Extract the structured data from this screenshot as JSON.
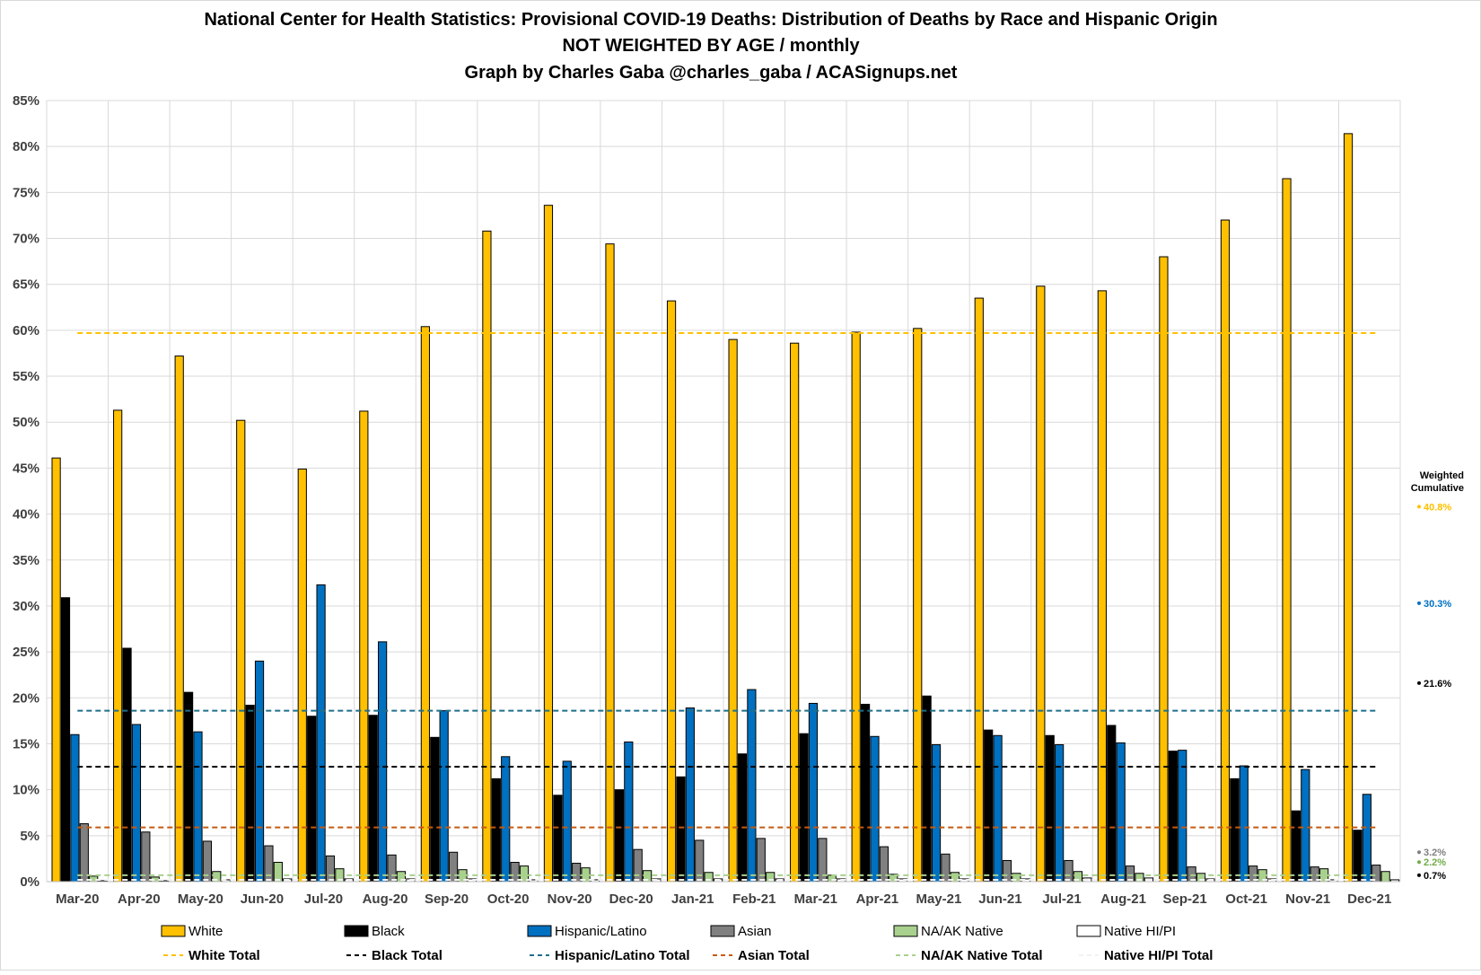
{
  "chart_data": {
    "type": "bar",
    "title_lines": [
      "National Center for Health Statistics: Provisional COVID-19 Deaths: Distribution of Deaths by Race and Hispanic Origin",
      "NOT WEIGHTED BY AGE / monthly",
      "Graph by Charles Gaba @charles_gaba / ACASignups.net"
    ],
    "categories": [
      "Mar-20",
      "Apr-20",
      "May-20",
      "Jun-20",
      "Jul-20",
      "Aug-20",
      "Sep-20",
      "Oct-20",
      "Nov-20",
      "Dec-20",
      "Jan-21",
      "Feb-21",
      "Mar-21",
      "Apr-21",
      "May-21",
      "Jun-21",
      "Jul-21",
      "Aug-21",
      "Sep-21",
      "Oct-21",
      "Nov-21",
      "Dec-21"
    ],
    "ylim": [
      0,
      85
    ],
    "yticks": [
      0,
      5,
      10,
      15,
      20,
      25,
      30,
      35,
      40,
      45,
      50,
      55,
      60,
      65,
      70,
      75,
      80,
      85
    ],
    "y_unit": "%",
    "grid": true,
    "series": [
      {
        "name": "White",
        "color": "#FFC000",
        "values": [
          46.1,
          51.3,
          57.2,
          50.2,
          44.9,
          51.2,
          60.4,
          70.8,
          73.6,
          69.4,
          63.2,
          59.0,
          58.6,
          59.8,
          60.2,
          63.5,
          64.8,
          64.3,
          68.0,
          72.0,
          76.5,
          81.4
        ]
      },
      {
        "name": "Black",
        "color": "#000000",
        "values": [
          30.9,
          25.4,
          20.6,
          19.2,
          18.0,
          18.1,
          15.7,
          11.2,
          9.4,
          10.0,
          11.4,
          13.9,
          16.1,
          19.3,
          20.2,
          16.5,
          15.9,
          17.0,
          14.2,
          11.2,
          7.7,
          5.6
        ]
      },
      {
        "name": "Hispanic/Latino",
        "color": "#0070C0",
        "values": [
          16.0,
          17.1,
          16.3,
          24.0,
          32.3,
          26.1,
          18.6,
          13.6,
          13.1,
          15.2,
          18.9,
          20.9,
          19.4,
          15.8,
          14.9,
          15.9,
          14.9,
          15.1,
          14.3,
          12.6,
          12.2,
          9.5
        ]
      },
      {
        "name": "Asian",
        "color": "#808080",
        "values": [
          6.3,
          5.4,
          4.4,
          3.9,
          2.8,
          2.9,
          3.2,
          2.1,
          2.0,
          3.5,
          4.5,
          4.7,
          4.7,
          3.8,
          3.0,
          2.3,
          2.3,
          1.7,
          1.6,
          1.7,
          1.6,
          1.8
        ]
      },
      {
        "name": "NA/AK Native",
        "color": "#A9D18E",
        "values": [
          0.6,
          0.5,
          1.1,
          2.1,
          1.4,
          1.1,
          1.3,
          1.7,
          1.5,
          1.2,
          1.0,
          1.0,
          0.7,
          0.8,
          1.0,
          0.9,
          1.1,
          0.9,
          0.9,
          1.3,
          1.4,
          1.1
        ]
      },
      {
        "name": "Native HI/PI",
        "color": "#FFFFFF",
        "values": [
          0.1,
          0.1,
          0.2,
          0.3,
          0.3,
          0.3,
          0.3,
          0.2,
          0.2,
          0.3,
          0.3,
          0.3,
          0.3,
          0.3,
          0.3,
          0.3,
          0.4,
          0.4,
          0.3,
          0.3,
          0.2,
          0.2
        ]
      }
    ],
    "total_lines": [
      {
        "name": "White Total",
        "color": "#FFC000",
        "value": 59.7
      },
      {
        "name": "Black Total",
        "color": "#000000",
        "value": 12.5
      },
      {
        "name": "Hispanic/Latino Total",
        "color": "#1F6F8B",
        "value": 18.6
      },
      {
        "name": "Asian Total",
        "color": "#C55A11",
        "value": 5.9
      },
      {
        "name": "NA/AK Native Total",
        "color": "#A9D18E",
        "value": 0.7
      },
      {
        "name": "Native HI/PI Total",
        "color": "#F2F2F2",
        "value": 0.2
      }
    ],
    "side_annotation": {
      "heading_lines": [
        "Weighted",
        "Cumulative"
      ],
      "values": [
        {
          "label": "40.8%",
          "value": 40.8,
          "color": "#FFC000"
        },
        {
          "label": "30.3%",
          "value": 30.3,
          "color": "#0070C0"
        },
        {
          "label": "21.6%",
          "value": 21.6,
          "color": "#000000"
        },
        {
          "label": "3.2%",
          "value": 3.2,
          "color": "#808080"
        },
        {
          "label": "2.2%",
          "value": 2.2,
          "color": "#70AD47"
        },
        {
          "label": "0.7%",
          "value": 0.7,
          "color": "#000000"
        }
      ]
    },
    "legend_placement": "bottom"
  }
}
